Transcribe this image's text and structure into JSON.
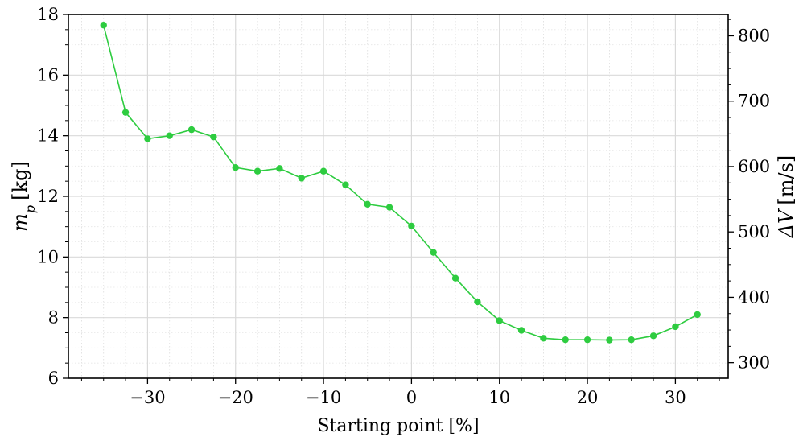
{
  "chart_data": {
    "type": "line",
    "xlabel": "Starting point [%]",
    "ylabel_left": {
      "symbol": "m",
      "subscript": "p",
      "unit": "[kg]"
    },
    "ylabel_right": {
      "symbol": "ΔV",
      "unit": "[m/s]"
    },
    "xlim": [
      -39,
      36
    ],
    "ylim_left": [
      6,
      18
    ],
    "ylim_right": [
      276.2,
      832.6
    ],
    "x_ticks": [
      -30,
      -20,
      -10,
      0,
      10,
      20,
      30
    ],
    "x_tick_labels": [
      "−30",
      "−20",
      "−10",
      "0",
      "10",
      "20",
      "30"
    ],
    "y_left_ticks": [
      6,
      8,
      10,
      12,
      14,
      16,
      18
    ],
    "y_left_tick_labels": [
      "6",
      "8",
      "10",
      "12",
      "14",
      "16",
      "18"
    ],
    "y_right_ticks": [
      300,
      400,
      500,
      600,
      700,
      800
    ],
    "y_right_tick_labels": [
      "300",
      "400",
      "500",
      "600",
      "700",
      "800"
    ],
    "grid": true,
    "series": [
      {
        "color": "#2ecc40",
        "marker": "circle",
        "x": [
          -35,
          -32.5,
          -30,
          -27.5,
          -25,
          -22.5,
          -20,
          -17.5,
          -15,
          -12.5,
          -10,
          -7.5,
          -5,
          -2.5,
          0,
          2.5,
          5,
          7.5,
          10,
          12.5,
          15,
          17.5,
          20,
          22.5,
          25,
          27.5,
          30,
          32.5
        ],
        "values": [
          17.65,
          14.77,
          13.9,
          14.0,
          14.2,
          13.96,
          12.95,
          12.83,
          12.92,
          12.6,
          12.83,
          12.38,
          11.74,
          11.64,
          11.02,
          10.15,
          9.3,
          8.52,
          7.9,
          7.58,
          7.32,
          7.27,
          7.27,
          7.26,
          7.27,
          7.4,
          7.7,
          8.1
        ]
      }
    ]
  }
}
